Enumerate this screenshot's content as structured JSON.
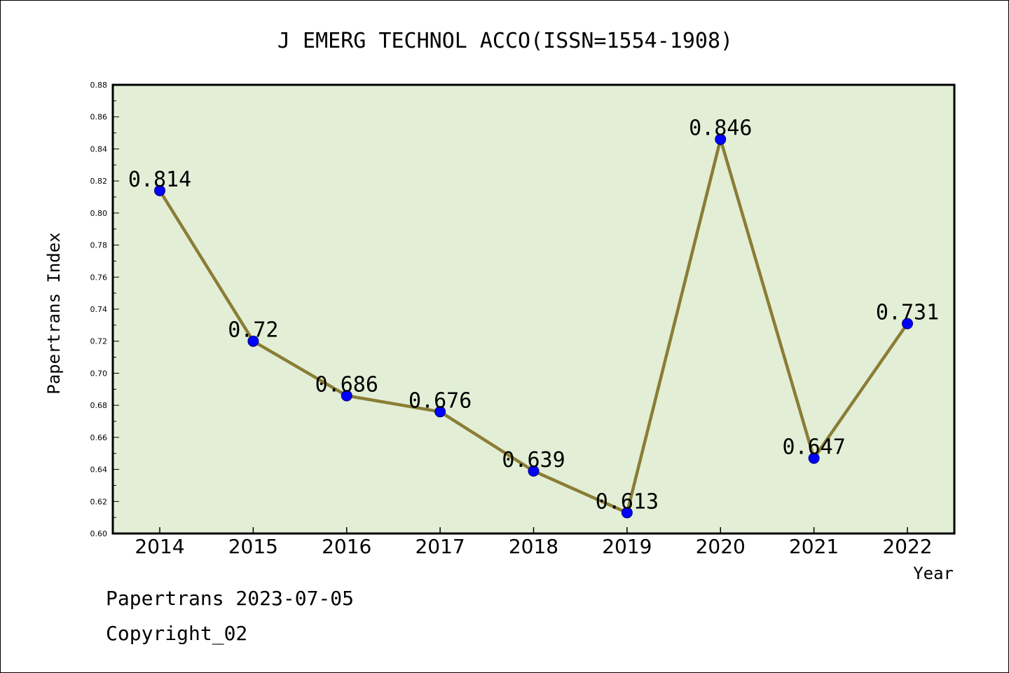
{
  "chart_data": {
    "type": "line",
    "title": "J EMERG TECHNOL ACCO(ISSN=1554-1908)",
    "xlabel": "Year",
    "ylabel": "Papertrans Index",
    "categories": [
      "2014",
      "2015",
      "2016",
      "2017",
      "2018",
      "2019",
      "2020",
      "2021",
      "2022"
    ],
    "values": [
      0.814,
      0.72,
      0.686,
      0.676,
      0.639,
      0.613,
      0.846,
      0.647,
      0.731
    ],
    "data_labels": [
      "0.814",
      "0.72",
      "0.686",
      "0.676",
      "0.639",
      "0.613",
      "0.846",
      "0.647",
      "0.731"
    ],
    "ylim": [
      0.6,
      0.88
    ],
    "yticks": [
      "0.60",
      "0.62",
      "0.64",
      "0.66",
      "0.68",
      "0.70",
      "0.72",
      "0.74",
      "0.76",
      "0.78",
      "0.80",
      "0.82",
      "0.84",
      "0.86",
      "0.88"
    ],
    "grid": false,
    "colors": {
      "plot_background": "#e2efd6",
      "line": "#8b7d36",
      "marker": "#0000ff",
      "marker_edge": "#00007a"
    }
  },
  "footer": {
    "date_line": "Papertrans 2023-07-05",
    "copyright_line": "Copyright_02"
  }
}
